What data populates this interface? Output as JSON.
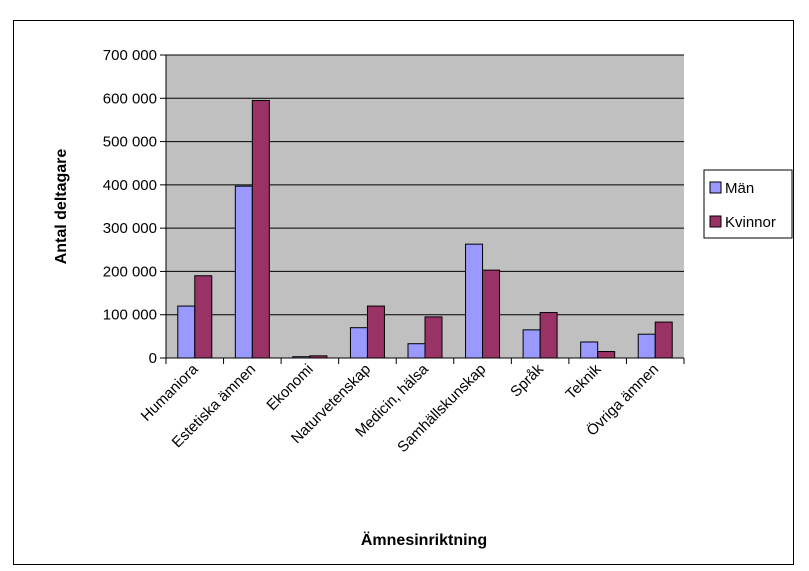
{
  "chart_data": {
    "type": "bar",
    "categories": [
      "Humaniora",
      "Estetiska ämnen",
      "Ekonomi",
      "Naturvetenskap",
      "Medicin, hälsa",
      "Samhällskunskap",
      "Språk",
      "Teknik",
      "Övriga ämnen"
    ],
    "series": [
      {
        "name": "Män",
        "values": [
          120000,
          397000,
          3000,
          70000,
          33000,
          263000,
          65000,
          37000,
          55000
        ],
        "color": "#9999ff"
      },
      {
        "name": "Kvinnor",
        "values": [
          190000,
          595000,
          5000,
          120000,
          95000,
          203000,
          105000,
          15000,
          83000
        ],
        "color": "#993366"
      }
    ],
    "yticks": [
      "0",
      "100 000",
      "200 000",
      "300 000",
      "400 000",
      "500 000",
      "600 000",
      "700 000"
    ],
    "ylim": [
      0,
      700000
    ],
    "xlabel": "Ämnesinriktning",
    "ylabel": "Antal deltagare",
    "grid": true,
    "legend_position": "right",
    "plot_background": "#c0c0c0"
  }
}
